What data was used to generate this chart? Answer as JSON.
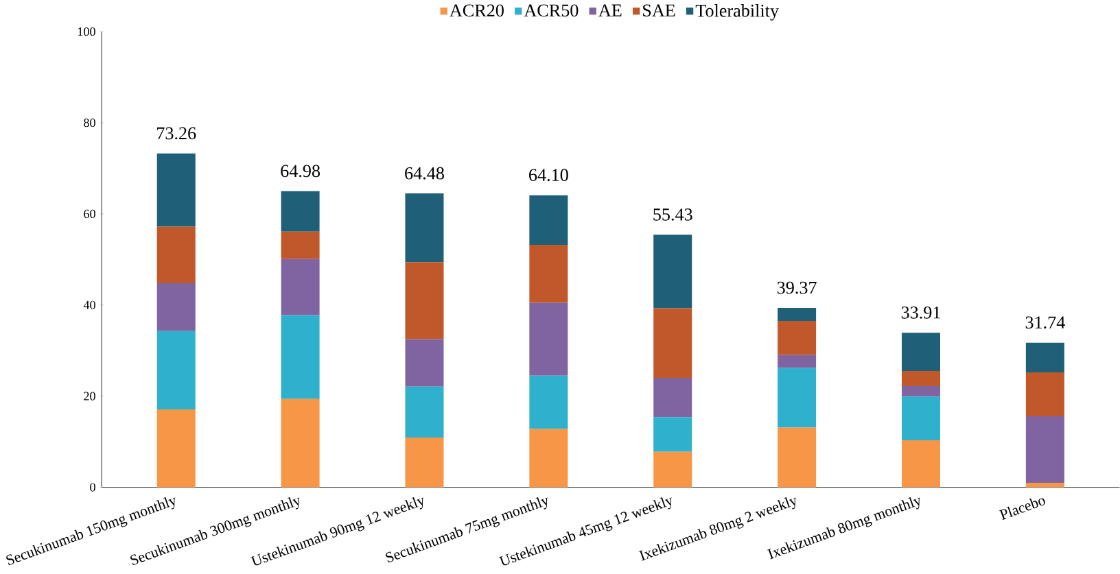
{
  "chart_data": {
    "type": "bar",
    "stacked": true,
    "legend": "top",
    "grid": false,
    "categories": [
      "Secukinumab 150mg  monthly",
      "Secukinumab 300mg  monthly",
      "Ustekinumab 90mg 12 weekly",
      "Secukinumab 75mg  monthly",
      "Ustekinumab 45mg 12 weekly",
      "Ixekizumab 80mg 2 weekly",
      "Ixekizumab 80mg monthly",
      "Placebo"
    ],
    "ylim": [
      0,
      100
    ],
    "yticks": [
      0,
      20,
      40,
      60,
      80,
      100
    ],
    "series": [
      {
        "name": "ACR20",
        "color": "#f79646",
        "values": [
          17.1,
          19.4,
          10.9,
          12.8,
          7.8,
          13.1,
          10.3,
          1.0
        ]
      },
      {
        "name": "ACR50",
        "color": "#2fb0cc",
        "values": [
          17.2,
          18.4,
          11.2,
          11.7,
          7.6,
          13.1,
          9.6,
          0
        ]
      },
      {
        "name": "AE",
        "color": "#8064a2",
        "values": [
          10.5,
          12.3,
          10.4,
          16.0,
          8.6,
          2.8,
          2.3,
          14.6
        ]
      },
      {
        "name": "SAE",
        "color": "#c0582a",
        "values": [
          12.4,
          6.0,
          16.9,
          12.7,
          15.3,
          7.5,
          3.3,
          9.6
        ]
      },
      {
        "name": "Tolerability",
        "color": "#1f5f78",
        "values": [
          16.06,
          8.88,
          15.08,
          10.9,
          16.13,
          2.87,
          8.41,
          6.54
        ]
      }
    ],
    "totals": [
      "73.26",
      "64.98",
      "64.48",
      "64.10",
      "55.43",
      "39.37",
      "33.91",
      "31.74"
    ]
  }
}
